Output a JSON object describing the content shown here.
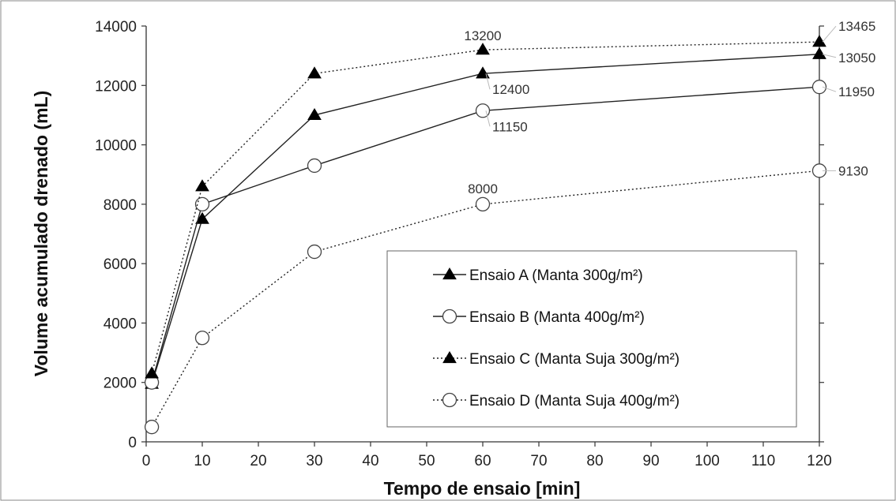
{
  "chart_data": {
    "type": "line",
    "xlabel": "Tempo de ensaio [min]",
    "ylabel": "Volume acumulado drenado (mL)",
    "xlim": [
      0,
      120
    ],
    "ylim": [
      0,
      14000
    ],
    "xticks": [
      0,
      10,
      20,
      30,
      40,
      50,
      60,
      70,
      80,
      90,
      100,
      110,
      120
    ],
    "yticks": [
      0,
      2000,
      4000,
      6000,
      8000,
      10000,
      12000,
      14000
    ],
    "grid": false,
    "legend_position": "bottom-right",
    "series": [
      {
        "name": "Ensaio A (Manta 300g/m²)",
        "marker": "filled-triangle",
        "line": "solid",
        "x": [
          1,
          10,
          30,
          60,
          120
        ],
        "y": [
          1950,
          7500,
          11000,
          12400,
          13050
        ]
      },
      {
        "name": "Ensaio B (Manta 400g/m²)",
        "marker": "open-circle",
        "line": "solid",
        "x": [
          1,
          10,
          30,
          60,
          120
        ],
        "y": [
          2000,
          8000,
          9300,
          11150,
          11950
        ]
      },
      {
        "name": "Ensaio C (Manta Suja 300g/m²)",
        "marker": "filled-triangle",
        "line": "dotted",
        "x": [
          1,
          10,
          30,
          60,
          120
        ],
        "y": [
          2300,
          8600,
          12400,
          13200,
          13465
        ]
      },
      {
        "name": "Ensaio D (Manta Suja 400g/m²)",
        "marker": "open-circle",
        "line": "dotted",
        "x": [
          1,
          10,
          30,
          60,
          120
        ],
        "y": [
          500,
          3500,
          6400,
          8000,
          9130
        ]
      }
    ],
    "annotations": [
      {
        "text": "13200",
        "x": 60,
        "y": 13200
      },
      {
        "text": "12400",
        "x": 60,
        "y": 12400
      },
      {
        "text": "11150",
        "x": 60,
        "y": 11150
      },
      {
        "text": "8000",
        "x": 60,
        "y": 8000
      },
      {
        "text": "13465",
        "x": 120,
        "y": 13465
      },
      {
        "text": "13050",
        "x": 120,
        "y": 13050
      },
      {
        "text": "11950",
        "x": 120,
        "y": 11950
      },
      {
        "text": "9130",
        "x": 120,
        "y": 9130
      }
    ]
  }
}
